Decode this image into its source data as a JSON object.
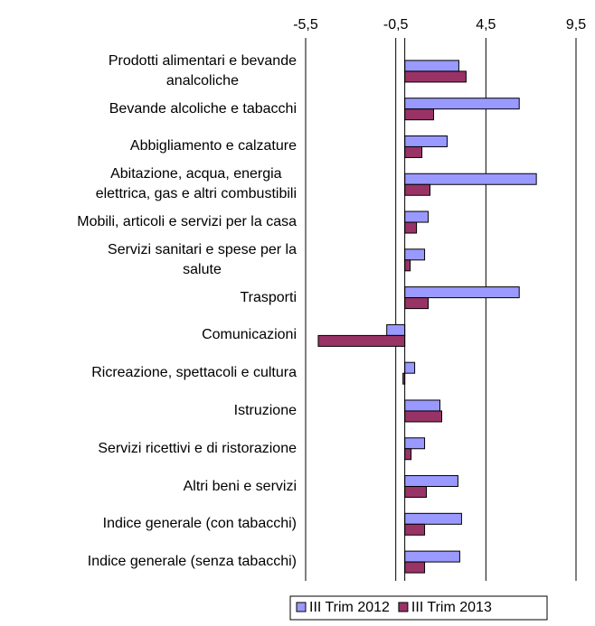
{
  "chart_data": {
    "type": "hbar",
    "categories": [
      "Prodotti alimentari e bevande\nanalcoliche",
      "Bevande alcoliche e tabacchi",
      "Abbigliamento e calzature",
      "Abitazione, acqua, energia\nelettrica, gas e altri combustibili",
      "Mobili, articoli e servizi per la casa",
      "Servizi sanitari e spese per la\nsalute",
      "Trasporti",
      "Comunicazioni",
      "Ricreazione, spettacoli e cultura",
      "Istruzione",
      "Servizi ricettivi e di ristorazione",
      "Altri beni e servizi",
      "Indice generale (con tabacchi)",
      "Indice generale (senza tabacchi)"
    ],
    "series": [
      {
        "name": "III Trim 2012",
        "color": "#9999ff",
        "values": [
          3.0,
          6.35,
          2.35,
          7.3,
          1.3,
          1.1,
          6.35,
          -1.0,
          0.55,
          1.95,
          1.1,
          2.95,
          3.15,
          3.05
        ]
      },
      {
        "name": "III Trim 2013",
        "color": "#993366",
        "values": [
          3.4,
          1.6,
          0.95,
          1.4,
          0.65,
          0.3,
          1.3,
          -4.8,
          -0.1,
          2.05,
          0.35,
          1.2,
          1.1,
          1.1
        ]
      }
    ],
    "xlim": [
      -5.5,
      9.5
    ],
    "xticks": [
      {
        "value": -5.5,
        "label": "-5,5"
      },
      {
        "value": -0.5,
        "label": "-0,5"
      },
      {
        "value": 4.5,
        "label": "4,5"
      },
      {
        "value": 9.5,
        "label": "9,5"
      }
    ],
    "grid": true,
    "legend": "bottom"
  }
}
